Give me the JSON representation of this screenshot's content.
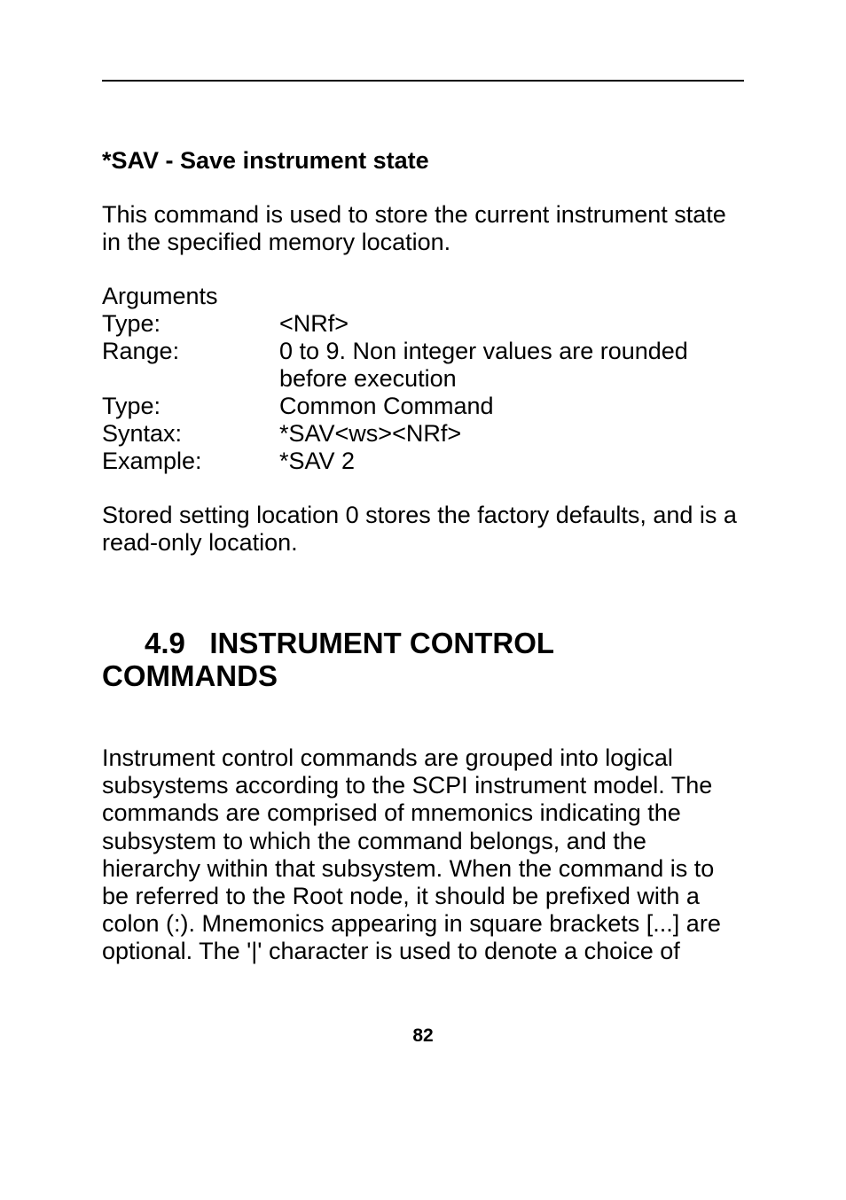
{
  "sav": {
    "title": "*SAV - Save instrument state",
    "intro": "This command is used to store the current instrument state in the specified memory location.",
    "argsHeader": "Arguments",
    "rows": [
      {
        "label": "Type:",
        "value": "<NRf>"
      },
      {
        "label": "Range:",
        "value": "0 to 9. Non integer values are rounded before execution"
      },
      {
        "label": "Type:",
        "value": "Common Command"
      },
      {
        "label": "Syntax:",
        "value": "*SAV<ws><NRf>"
      },
      {
        "label": "Example:",
        "value": "*SAV 2"
      }
    ],
    "note": "Stored setting location 0 stores the factory defaults, and is a read-only location."
  },
  "section": {
    "number": "4.9",
    "title": "INSTRUMENT CONTROL COMMANDS",
    "body": "Instrument control commands are grouped into logical subsystems according to the SCPI instrument model. The commands are comprised of mnemonics indicating the subsystem to which the command belongs, and the hierarchy within that subsystem.  When the command is to be referred to the Root node, it should be prefixed with a colon (:). Mnemonics appearing in square brackets [...] are optional. The '|' character is used to denote a choice of"
  },
  "pageNumber": "82"
}
